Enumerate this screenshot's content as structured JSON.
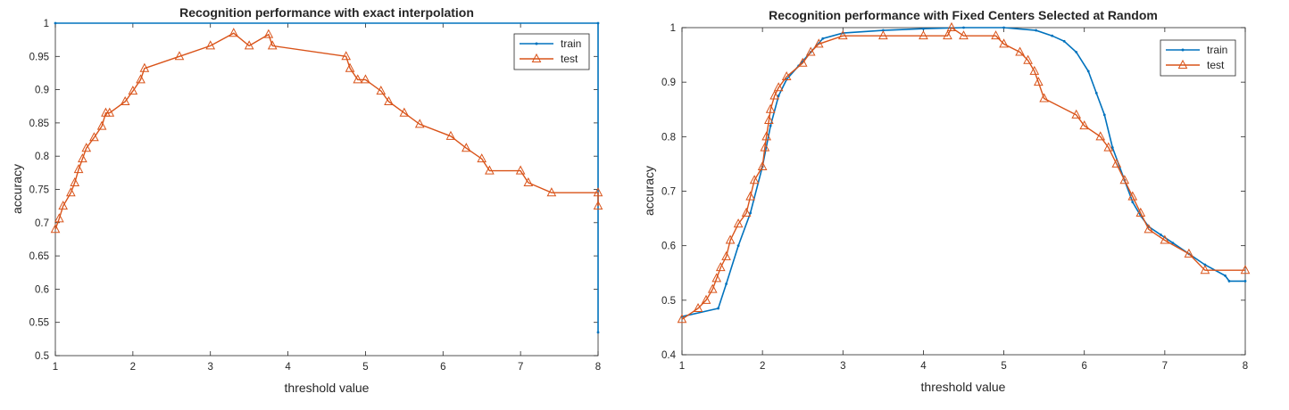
{
  "colors": {
    "train": "#0072BD",
    "test": "#D95319",
    "axis": "#262626",
    "background": "#ffffff"
  },
  "chart_data": [
    {
      "type": "line",
      "title": "Recognition performance with exact interpolation",
      "xlabel": "threshold value",
      "ylabel": "accuracy",
      "xlim": [
        1,
        8
      ],
      "ylim": [
        0.5,
        1
      ],
      "xticks": [
        "1",
        "2",
        "3",
        "4",
        "5",
        "6",
        "7",
        "8"
      ],
      "yticks": [
        "0.5",
        "0.55",
        "0.6",
        "0.65",
        "0.7",
        "0.75",
        "0.8",
        "0.85",
        "0.9",
        "0.95",
        "1"
      ],
      "grid": false,
      "legend_position": "top-right",
      "series": [
        {
          "name": "train",
          "marker": "point",
          "x": [
            1,
            8,
            8
          ],
          "y": [
            1,
            1,
            0.535
          ]
        },
        {
          "name": "test",
          "marker": "triangle",
          "x": [
            1.0,
            1.05,
            1.1,
            1.2,
            1.25,
            1.3,
            1.35,
            1.4,
            1.5,
            1.6,
            1.65,
            1.7,
            1.9,
            2.0,
            2.1,
            2.15,
            2.6,
            3.0,
            3.3,
            3.5,
            3.75,
            3.8,
            4.75,
            4.8,
            4.9,
            5.0,
            5.2,
            5.3,
            5.5,
            5.7,
            6.1,
            6.3,
            6.5,
            6.6,
            7.0,
            7.1,
            7.4,
            8.0,
            8.0
          ],
          "y": [
            0.69,
            0.706,
            0.725,
            0.745,
            0.76,
            0.78,
            0.796,
            0.812,
            0.828,
            0.845,
            0.865,
            0.865,
            0.882,
            0.898,
            0.915,
            0.932,
            0.95,
            0.966,
            0.985,
            0.966,
            0.983,
            0.966,
            0.95,
            0.932,
            0.915,
            0.915,
            0.898,
            0.882,
            0.865,
            0.848,
            0.83,
            0.812,
            0.796,
            0.778,
            0.778,
            0.76,
            0.745,
            0.745,
            0.725
          ]
        }
      ]
    },
    {
      "type": "line",
      "title": "Recognition performance with Fixed Centers Selected at Random",
      "xlabel": "threshold value",
      "ylabel": "accuracy",
      "xlim": [
        1,
        8
      ],
      "ylim": [
        0.4,
        1
      ],
      "xticks": [
        "1",
        "2",
        "3",
        "4",
        "5",
        "6",
        "7",
        "8"
      ],
      "yticks": [
        "0.4",
        "0.5",
        "0.6",
        "0.7",
        "0.8",
        "0.9",
        "1"
      ],
      "grid": false,
      "legend_position": "top-right",
      "series": [
        {
          "name": "train",
          "marker": "point",
          "x": [
            1.0,
            1.45,
            1.55,
            1.7,
            1.85,
            2.0,
            2.1,
            2.2,
            2.3,
            2.45,
            2.6,
            2.75,
            3.0,
            3.5,
            4.0,
            4.5,
            5.0,
            5.4,
            5.6,
            5.75,
            5.9,
            6.05,
            6.15,
            6.25,
            6.35,
            6.5,
            6.6,
            6.7,
            6.8,
            6.95,
            7.1,
            7.3,
            7.5,
            7.75,
            7.8,
            8.0
          ],
          "y": [
            0.47,
            0.485,
            0.53,
            0.6,
            0.66,
            0.745,
            0.82,
            0.875,
            0.905,
            0.93,
            0.955,
            0.98,
            0.99,
            0.995,
            0.998,
            1.0,
            1.0,
            0.995,
            0.985,
            0.975,
            0.955,
            0.92,
            0.88,
            0.84,
            0.78,
            0.72,
            0.68,
            0.655,
            0.635,
            0.62,
            0.605,
            0.585,
            0.565,
            0.545,
            0.535,
            0.535
          ]
        },
        {
          "name": "test",
          "marker": "triangle",
          "x": [
            1.0,
            1.2,
            1.3,
            1.38,
            1.43,
            1.48,
            1.55,
            1.6,
            1.7,
            1.8,
            1.85,
            1.9,
            2.0,
            2.03,
            2.05,
            2.08,
            2.1,
            2.15,
            2.2,
            2.3,
            2.5,
            2.6,
            2.7,
            3.0,
            3.5,
            4.0,
            4.3,
            4.35,
            4.5,
            4.9,
            5.0,
            5.2,
            5.3,
            5.38,
            5.43,
            5.5,
            5.9,
            6.0,
            6.2,
            6.3,
            6.4,
            6.5,
            6.6,
            6.7,
            6.8,
            7.0,
            7.3,
            7.5,
            8.0
          ],
          "y": [
            0.465,
            0.485,
            0.5,
            0.52,
            0.54,
            0.56,
            0.58,
            0.61,
            0.64,
            0.66,
            0.69,
            0.72,
            0.745,
            0.78,
            0.8,
            0.83,
            0.85,
            0.875,
            0.89,
            0.91,
            0.935,
            0.955,
            0.97,
            0.985,
            0.985,
            0.985,
            0.985,
            1.0,
            0.985,
            0.985,
            0.97,
            0.955,
            0.94,
            0.92,
            0.9,
            0.87,
            0.84,
            0.82,
            0.8,
            0.78,
            0.75,
            0.72,
            0.69,
            0.66,
            0.63,
            0.61,
            0.585,
            0.555,
            0.555
          ]
        }
      ]
    }
  ]
}
